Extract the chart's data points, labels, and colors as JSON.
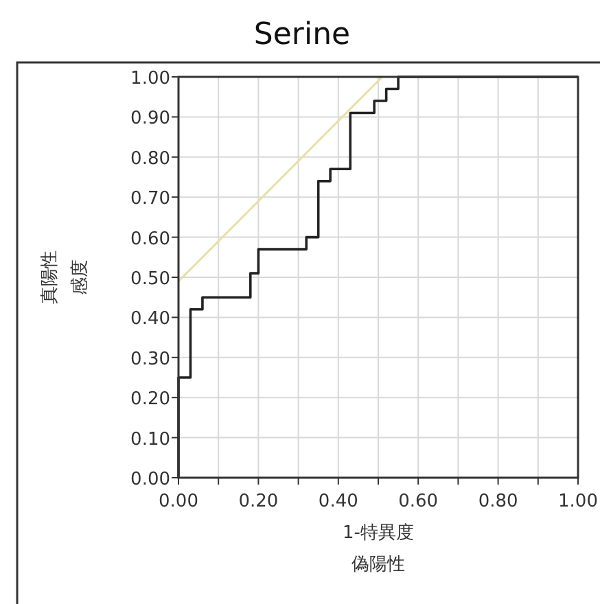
{
  "chart_data": {
    "type": "step",
    "title": "Serine",
    "xlabel": "1-特異度",
    "ylabel": "感度",
    "annotations": [
      "偽陽性",
      "真陽性"
    ],
    "series": [
      {
        "color": "#222222",
        "x": [
          0,
          0,
          0.03,
          0.06,
          0.18,
          0.2,
          0.32,
          0.35,
          0.38,
          0.43,
          0.49,
          0.52,
          0.55,
          1.0
        ],
        "values": [
          0,
          0.25,
          0.42,
          0.45,
          0.51,
          0.57,
          0.6,
          0.74,
          0.77,
          0.91,
          0.94,
          0.97,
          1.0,
          1.0
        ]
      },
      {
        "type": "line",
        "color": "#e6e0a8",
        "x": [
          0,
          0.51
        ],
        "values": [
          0.49,
          1.0
        ]
      }
    ],
    "xlim": [
      0,
      1
    ],
    "ylim": [
      0,
      1
    ],
    "xticks": [
      {
        "value": 0,
        "label": "0.00"
      },
      {
        "value": 0.1,
        "label": null
      },
      {
        "value": 0.2,
        "label": "0.20"
      },
      {
        "value": 0.3,
        "label": null
      },
      {
        "value": 0.4,
        "label": "0.40"
      },
      {
        "value": 0.5,
        "label": null
      },
      {
        "value": 0.6,
        "label": "0.60"
      },
      {
        "value": 0.7,
        "label": null
      },
      {
        "value": 0.8,
        "label": "0.80"
      },
      {
        "value": 0.9,
        "label": null
      },
      {
        "value": 1.0,
        "label": "1.00"
      }
    ],
    "yticks": [
      {
        "value": 0,
        "label": "0.00"
      },
      {
        "value": 0.1,
        "label": "0.10"
      },
      {
        "value": 0.2,
        "label": "0.20"
      },
      {
        "value": 0.3,
        "label": "0.30"
      },
      {
        "value": 0.4,
        "label": "0.40"
      },
      {
        "value": 0.5,
        "label": "0.50"
      },
      {
        "value": 0.6,
        "label": "0.60"
      },
      {
        "value": 0.7,
        "label": "0.70"
      },
      {
        "value": 0.8,
        "label": "0.80"
      },
      {
        "value": 0.9,
        "label": "0.90"
      },
      {
        "value": 1.0,
        "label": "1.00"
      }
    ],
    "grid": true
  }
}
